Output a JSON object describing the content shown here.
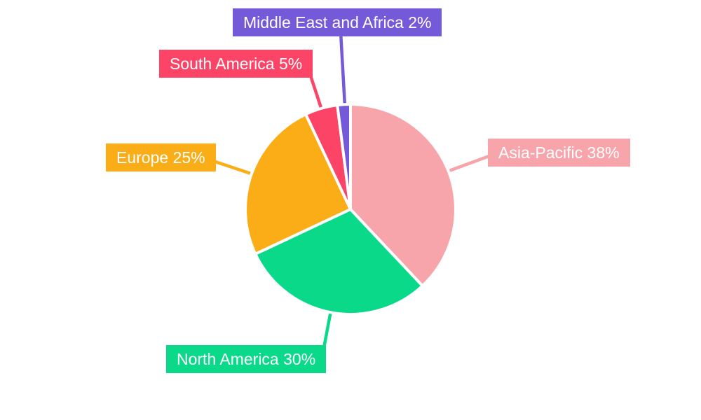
{
  "chart_data": {
    "type": "pie",
    "title": "",
    "legend": "none",
    "direction": "clockwise",
    "start_angle_deg": 0,
    "slice_gap_color": "#FFFFFF",
    "label_text_color": "#FFFFFF",
    "background_color": "#FFFFFF",
    "slices": [
      {
        "label": "Asia-Pacific",
        "value": 38,
        "unit": "%",
        "label_text": "Asia-Pacific 38%",
        "color": "#F7A4AA"
      },
      {
        "label": "North America",
        "value": 30,
        "unit": "%",
        "label_text": "North America 30%",
        "color": "#0BD98A"
      },
      {
        "label": "Europe",
        "value": 25,
        "unit": "%",
        "label_text": "Europe 25%",
        "color": "#FBAD18"
      },
      {
        "label": "South America",
        "value": 5,
        "unit": "%",
        "label_text": "South America 5%",
        "color": "#FB4466"
      },
      {
        "label": "Middle East and Africa",
        "value": 2,
        "unit": "%",
        "label_text": "Middle East and Africa 2%",
        "color": "#7459D8"
      }
    ]
  }
}
